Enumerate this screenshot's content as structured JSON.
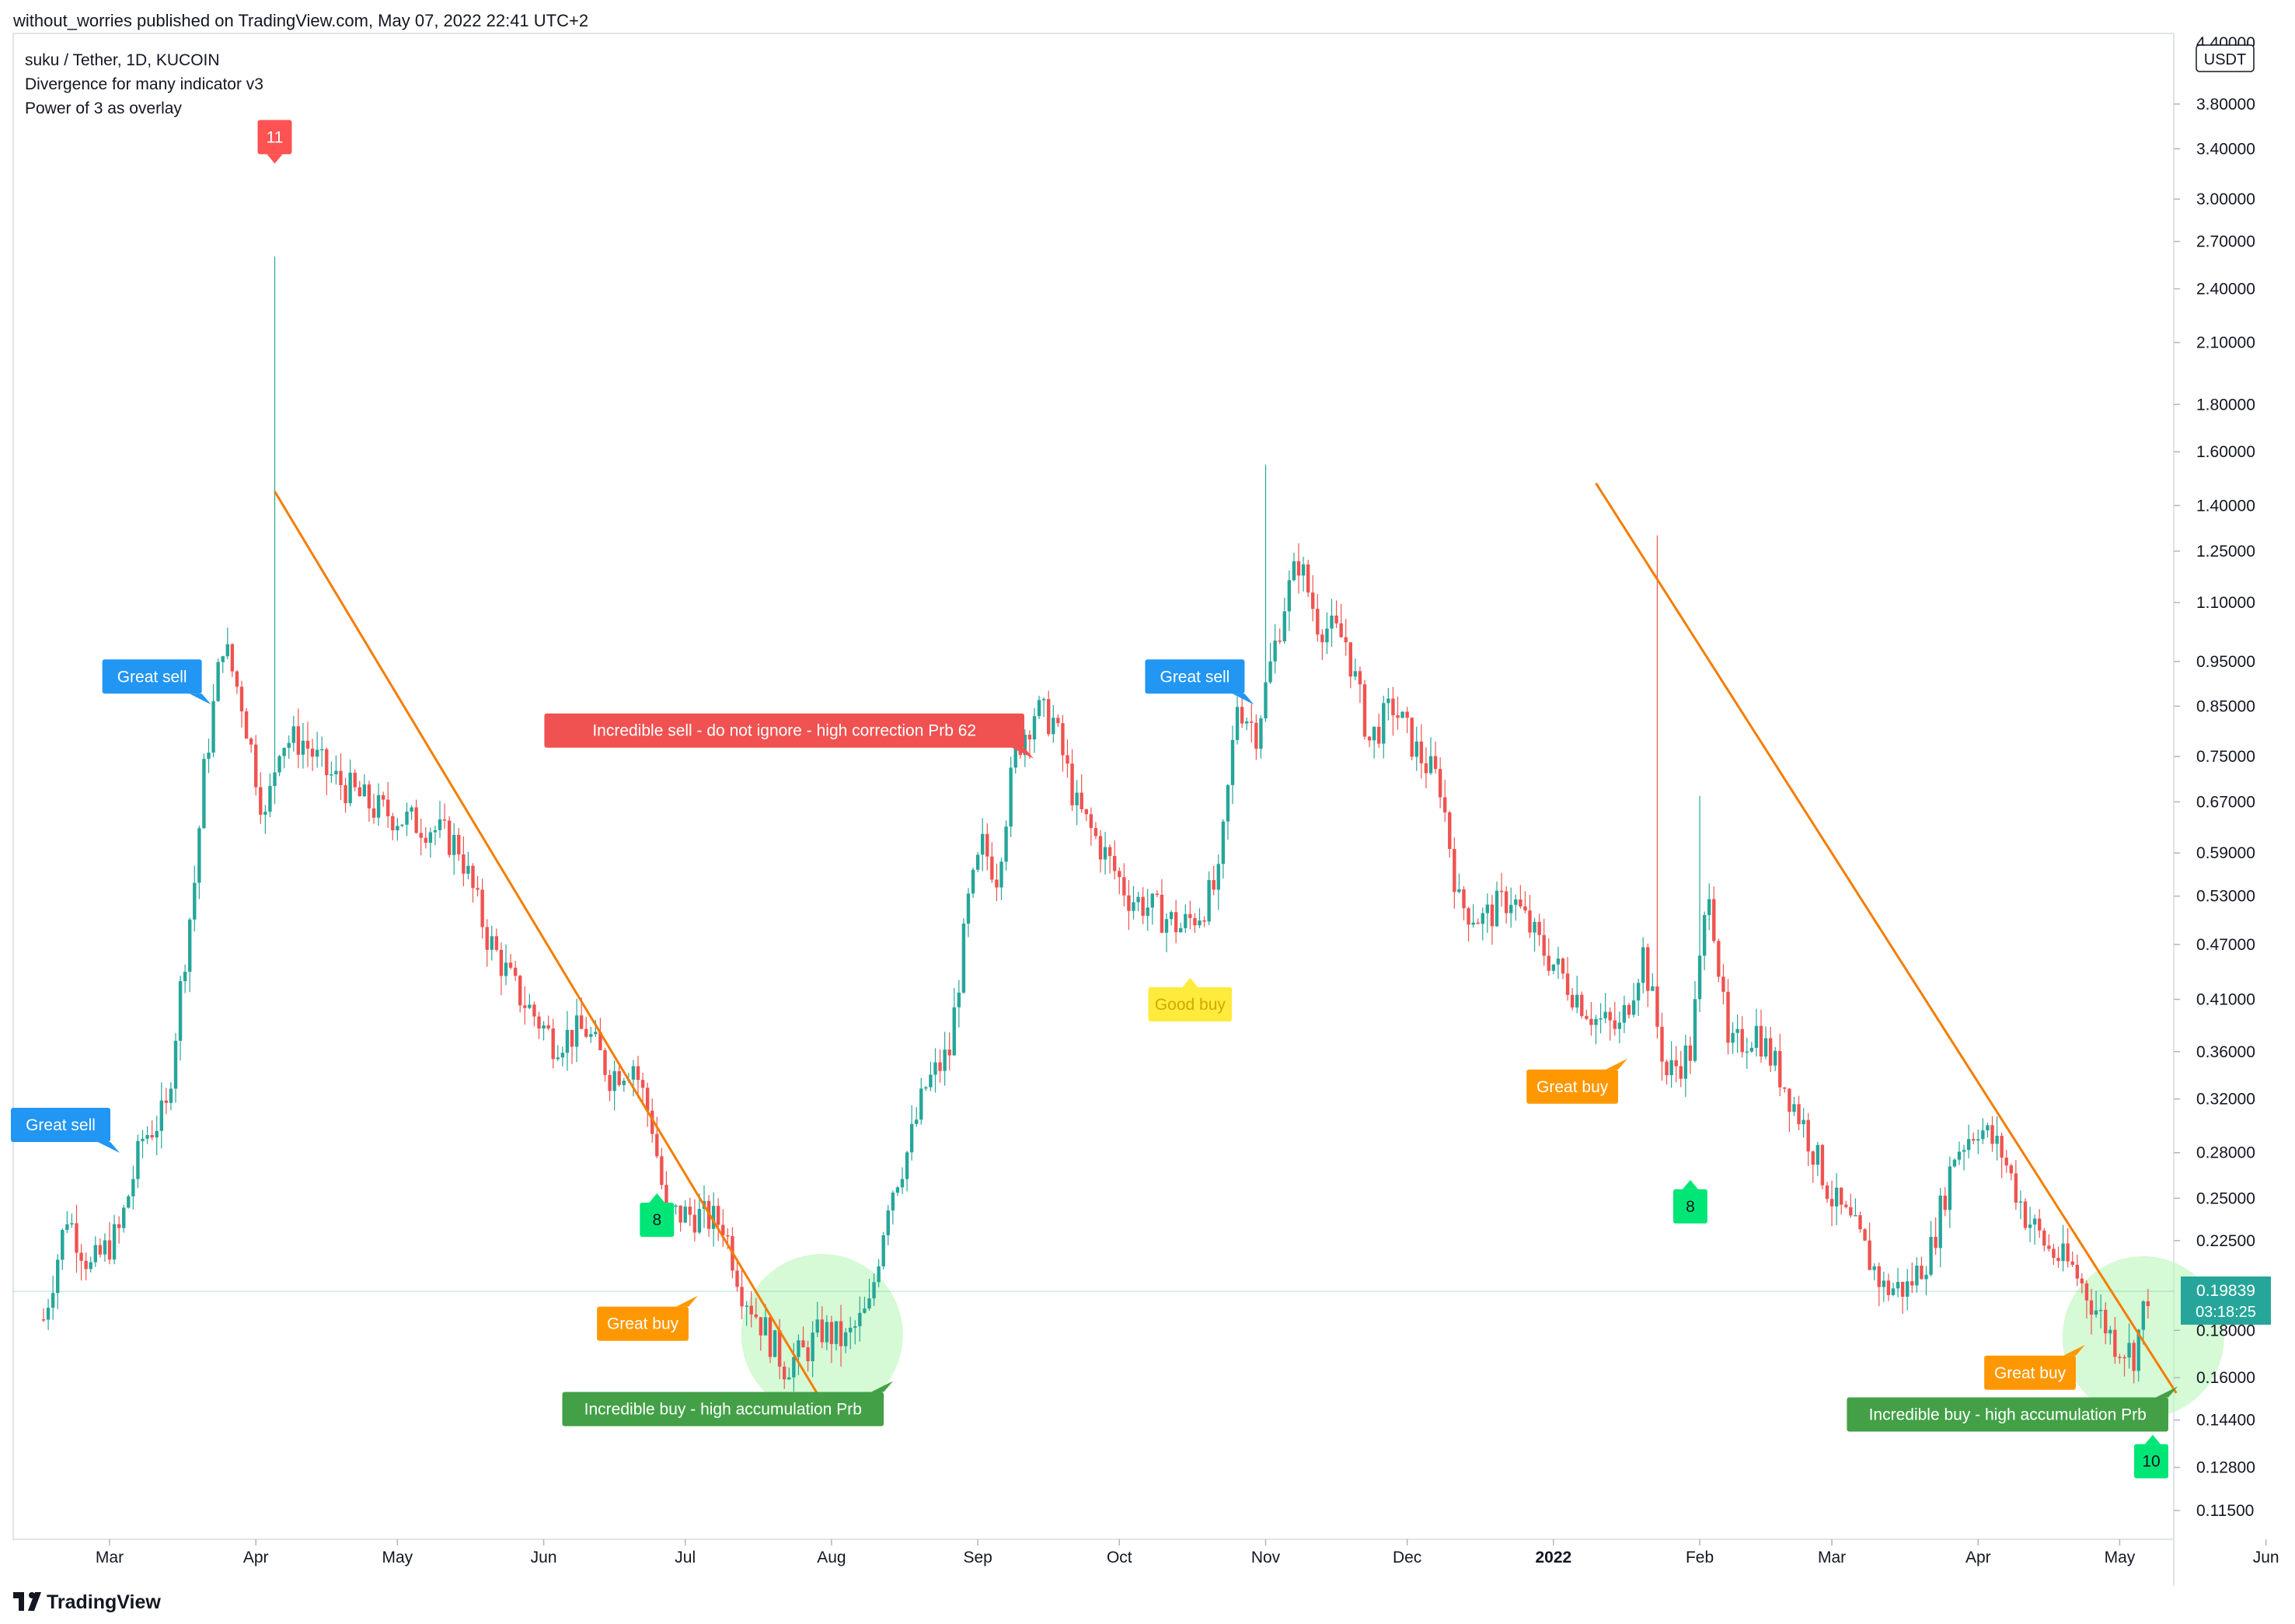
{
  "header": {
    "published_text": "without_worries published on TradingView.com, May 07, 2022 22:41 UTC+2"
  },
  "legend": {
    "symbol_line": "suku / Tether, 1D, KUCOIN",
    "indicator_1": "Divergence for many indicator v3",
    "indicator_2": "Power of 3 as overlay"
  },
  "footer": {
    "brand": "TradingView"
  },
  "colors": {
    "up_candle": "#26a69a",
    "down_candle": "#ef5350",
    "trendline": "#f57c00",
    "great_sell": "#2196f3",
    "incredible_sell": "#f05151",
    "great_buy": "#ff9800",
    "incredible_buy": "#43a047",
    "good_buy": "#ffeb3b",
    "count_up": "#00e676",
    "count_down": "#ff5252",
    "price_badge": "#26a69a",
    "zone": "#b9f6b9"
  },
  "chart_data": {
    "type": "candlestick",
    "scale": "log",
    "currency_label": "USDT",
    "price_axis_ticks": [
      "4.40000",
      "3.80000",
      "3.40000",
      "3.00000",
      "2.70000",
      "2.40000",
      "2.10000",
      "1.80000",
      "1.60000",
      "1.40000",
      "1.25000",
      "1.10000",
      "0.95000",
      "0.85000",
      "0.75000",
      "0.67000",
      "0.59000",
      "0.53000",
      "0.47000",
      "0.41000",
      "0.36000",
      "0.32000",
      "0.28000",
      "0.25000",
      "0.22500",
      "0.18000",
      "0.16000",
      "0.14400",
      "0.12800",
      "0.11500"
    ],
    "time_axis_ticks": [
      "Mar",
      "Apr",
      "May",
      "Jun",
      "Jul",
      "Aug",
      "Sep",
      "Oct",
      "Nov",
      "Dec",
      "2022",
      "Feb",
      "Mar",
      "Apr",
      "May",
      "Jun"
    ],
    "last_price": "0.19839",
    "countdown": "03:18:25",
    "price_path": [
      [
        "2021-02-15",
        0.185
      ],
      [
        "2021-02-20",
        0.24
      ],
      [
        "2021-02-25",
        0.21
      ],
      [
        "2021-03-03",
        0.23
      ],
      [
        "2021-03-08",
        0.29
      ],
      [
        "2021-03-13",
        0.31
      ],
      [
        "2021-03-16",
        0.42
      ],
      [
        "2021-03-19",
        0.55
      ],
      [
        "2021-03-21",
        0.72
      ],
      [
        "2021-03-25",
        1.0
      ],
      [
        "2021-03-29",
        0.86
      ],
      [
        "2021-04-03",
        0.64
      ],
      [
        "2021-04-06",
        0.78
      ],
      [
        "2021-04-11",
        0.78
      ],
      [
        "2021-04-16",
        0.72
      ],
      [
        "2021-04-21",
        0.69
      ],
      [
        "2021-04-26",
        0.66
      ],
      [
        "2021-05-03",
        0.64
      ],
      [
        "2021-05-08",
        0.63
      ],
      [
        "2021-05-14",
        0.6
      ],
      [
        "2021-05-20",
        0.48
      ],
      [
        "2021-05-26",
        0.42
      ],
      [
        "2021-06-03",
        0.37
      ],
      [
        "2021-06-10",
        0.38
      ],
      [
        "2021-06-15",
        0.34
      ],
      [
        "2021-06-20",
        0.35
      ],
      [
        "2021-06-24",
        0.3
      ],
      [
        "2021-06-27",
        0.24
      ],
      [
        "2021-07-03",
        0.24
      ],
      [
        "2021-07-09",
        0.235
      ],
      [
        "2021-07-13",
        0.2
      ],
      [
        "2021-07-18",
        0.18
      ],
      [
        "2021-07-22",
        0.165
      ],
      [
        "2021-07-26",
        0.17
      ],
      [
        "2021-07-30",
        0.18
      ],
      [
        "2021-08-04",
        0.175
      ],
      [
        "2021-08-09",
        0.19
      ],
      [
        "2021-08-13",
        0.25
      ],
      [
        "2021-08-17",
        0.28
      ],
      [
        "2021-08-21",
        0.33
      ],
      [
        "2021-08-26",
        0.36
      ],
      [
        "2021-08-30",
        0.52
      ],
      [
        "2021-09-02",
        0.6
      ],
      [
        "2021-09-05",
        0.56
      ],
      [
        "2021-09-09",
        0.76
      ],
      [
        "2021-09-13",
        0.84
      ],
      [
        "2021-09-17",
        0.82
      ],
      [
        "2021-09-22",
        0.66
      ],
      [
        "2021-09-27",
        0.6
      ],
      [
        "2021-10-03",
        0.53
      ],
      [
        "2021-10-09",
        0.51
      ],
      [
        "2021-10-14",
        0.49
      ],
      [
        "2021-10-18",
        0.51
      ],
      [
        "2021-10-22",
        0.55
      ],
      [
        "2021-10-26",
        0.86
      ],
      [
        "2021-10-30",
        0.8
      ],
      [
        "2021-11-05",
        1.1
      ],
      [
        "2021-11-08",
        1.22
      ],
      [
        "2021-11-12",
        1.05
      ],
      [
        "2021-11-18",
        1.0
      ],
      [
        "2021-11-23",
        0.78
      ],
      [
        "2021-11-28",
        0.85
      ],
      [
        "2021-12-03",
        0.76
      ],
      [
        "2021-12-08",
        0.7
      ],
      [
        "2021-12-12",
        0.52
      ],
      [
        "2021-12-17",
        0.5
      ],
      [
        "2021-12-23",
        0.53
      ],
      [
        "2021-12-29",
        0.47
      ],
      [
        "2022-01-05",
        0.42
      ],
      [
        "2022-01-10",
        0.39
      ],
      [
        "2022-01-15",
        0.38
      ],
      [
        "2022-01-20",
        0.46
      ],
      [
        "2022-01-25",
        0.34
      ],
      [
        "2022-01-30",
        0.36
      ],
      [
        "2022-02-03",
        0.55
      ],
      [
        "2022-02-07",
        0.36
      ],
      [
        "2022-02-13",
        0.38
      ],
      [
        "2022-02-18",
        0.34
      ],
      [
        "2022-02-23",
        0.3
      ],
      [
        "2022-03-01",
        0.25
      ],
      [
        "2022-03-06",
        0.23
      ],
      [
        "2022-03-12",
        0.2
      ],
      [
        "2022-03-17",
        0.2
      ],
      [
        "2022-03-22",
        0.22
      ],
      [
        "2022-03-27",
        0.28
      ],
      [
        "2022-04-01",
        0.3
      ],
      [
        "2022-04-06",
        0.28
      ],
      [
        "2022-04-11",
        0.24
      ],
      [
        "2022-04-16",
        0.22
      ],
      [
        "2022-04-21",
        0.21
      ],
      [
        "2022-04-26",
        0.19
      ],
      [
        "2022-04-30",
        0.175
      ],
      [
        "2022-05-04",
        0.17
      ],
      [
        "2022-05-07",
        0.198
      ]
    ],
    "spikes": [
      {
        "date": "2021-04-05",
        "high": 2.6
      },
      {
        "date": "2021-11-01",
        "high": 1.55
      },
      {
        "date": "2022-01-23",
        "high": 1.3
      },
      {
        "date": "2022-02-01",
        "high": 0.68
      }
    ],
    "trendlines": [
      {
        "from": [
          "2021-04-05",
          1.45
        ],
        "to": [
          "2021-08-01",
          0.145
        ]
      },
      {
        "from": [
          "2022-01-10",
          1.48
        ],
        "to": [
          "2022-05-13",
          0.154
        ]
      }
    ],
    "zones": [
      {
        "center": [
          "2021-07-30",
          0.178
        ]
      },
      {
        "center": [
          "2022-05-06",
          0.177
        ]
      }
    ],
    "annotations": [
      {
        "text": "Great sell",
        "kind": "great_sell",
        "date": "2021-02-28",
        "price": 0.3,
        "anchor": "end"
      },
      {
        "text": "11",
        "kind": "count_down",
        "date": "2021-04-05",
        "price": 3.5
      },
      {
        "text": "Great sell",
        "kind": "great_sell",
        "date": "2021-03-10",
        "price": 0.915
      },
      {
        "text": "Incredible sell - do not ignore - high correction Prb   62",
        "kind": "incredible_sell",
        "date": "2021-07-22",
        "price": 0.8
      },
      {
        "text": "8",
        "kind": "count_up",
        "date": "2021-06-25",
        "price": 0.237
      },
      {
        "text": "Great buy",
        "kind": "great_buy",
        "date": "2021-06-22",
        "price": 0.183
      },
      {
        "text": "Incredible buy - high accumulation Prb",
        "kind": "incredible_buy",
        "date": "2021-07-09",
        "price": 0.148
      },
      {
        "text": "Great sell",
        "kind": "great_sell",
        "date": "2021-10-17",
        "price": 0.915
      },
      {
        "text": "Good buy",
        "kind": "good_buy",
        "date": "2021-10-16",
        "price": 0.405
      },
      {
        "text": "Great buy",
        "kind": "great_buy",
        "date": "2022-01-05",
        "price": 0.33
      },
      {
        "text": "8",
        "kind": "count_up",
        "date": "2022-01-30",
        "price": 0.245
      },
      {
        "text": "Great buy",
        "kind": "great_buy",
        "date": "2022-04-12",
        "price": 0.162
      },
      {
        "text": "Incredible buy - high accumulation Prb",
        "kind": "incredible_buy",
        "date": "2022-04-20",
        "price": 0.146
      },
      {
        "text": "10",
        "kind": "count_up",
        "date": "2022-05-08",
        "price": 0.13
      }
    ]
  }
}
